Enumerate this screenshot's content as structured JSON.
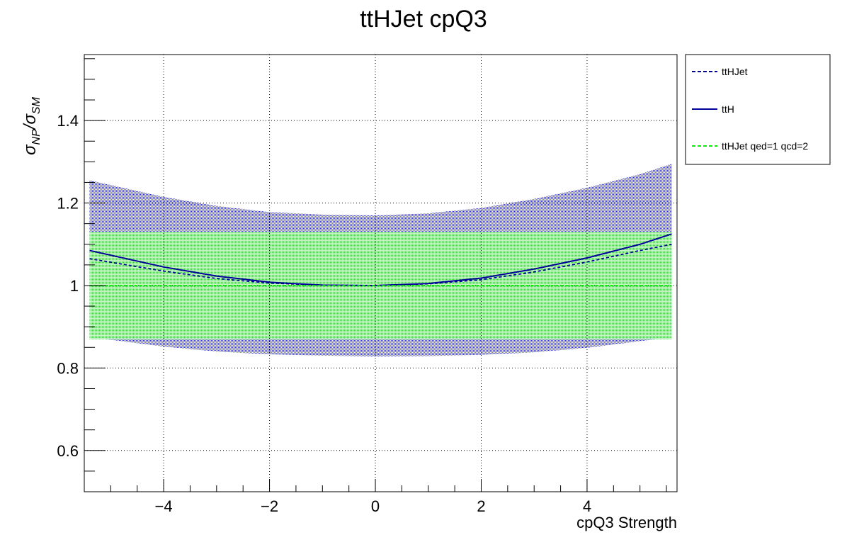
{
  "chart_data": {
    "type": "line",
    "title": "ttHJet cpQ3",
    "xlabel": "cpQ3 Strength",
    "ylabel": {
      "main": "σ",
      "sub1": "NP",
      "slash": "/σ",
      "sub2": "SM"
    },
    "xlim": [
      -5.5,
      5.7
    ],
    "ylim": [
      0.5,
      1.56
    ],
    "xticks": [
      -4,
      -2,
      0,
      2,
      4
    ],
    "xtick_labels": [
      "−4",
      "−2",
      "0",
      "2",
      "4"
    ],
    "yticks": [
      0.6,
      0.8,
      1.0,
      1.2,
      1.4
    ],
    "ytick_labels": [
      "0.6",
      "0.8",
      "1",
      "1.2",
      "1.4"
    ],
    "grid": true,
    "legend_position": "right-outside-top",
    "series": [
      {
        "name": "ttHJet",
        "style": "dashed",
        "color": "#000099",
        "x": [
          -5.4,
          -4,
          -3,
          -2,
          -1,
          0,
          1,
          2,
          3,
          4,
          5,
          5.6
        ],
        "y": [
          1.065,
          1.035,
          1.017,
          1.006,
          1.001,
          1.0,
          1.004,
          1.014,
          1.033,
          1.057,
          1.085,
          1.1
        ]
      },
      {
        "name": "ttH",
        "style": "solid",
        "color": "#000099",
        "x": [
          -5.4,
          -4,
          -3,
          -2,
          -1,
          0,
          1,
          2,
          3,
          4,
          5,
          5.6
        ],
        "y": [
          1.085,
          1.045,
          1.023,
          1.008,
          1.001,
          1.0,
          1.005,
          1.018,
          1.04,
          1.067,
          1.1,
          1.125
        ],
        "band_upper": [
          1.255,
          1.215,
          1.193,
          1.178,
          1.172,
          1.17,
          1.175,
          1.188,
          1.21,
          1.237,
          1.27,
          1.295
        ],
        "band_lower": [
          0.875,
          0.852,
          0.84,
          0.833,
          0.83,
          0.828,
          0.829,
          0.832,
          0.838,
          0.849,
          0.865,
          0.875
        ]
      },
      {
        "name": "ttHJet qed=1 qcd=2",
        "style": "dashed",
        "color": "#00ee00",
        "x": [
          -5.4,
          5.6
        ],
        "y": [
          1.0,
          1.0
        ],
        "band_upper": [
          1.13,
          1.13
        ],
        "band_lower": [
          0.87,
          0.87
        ]
      }
    ]
  }
}
